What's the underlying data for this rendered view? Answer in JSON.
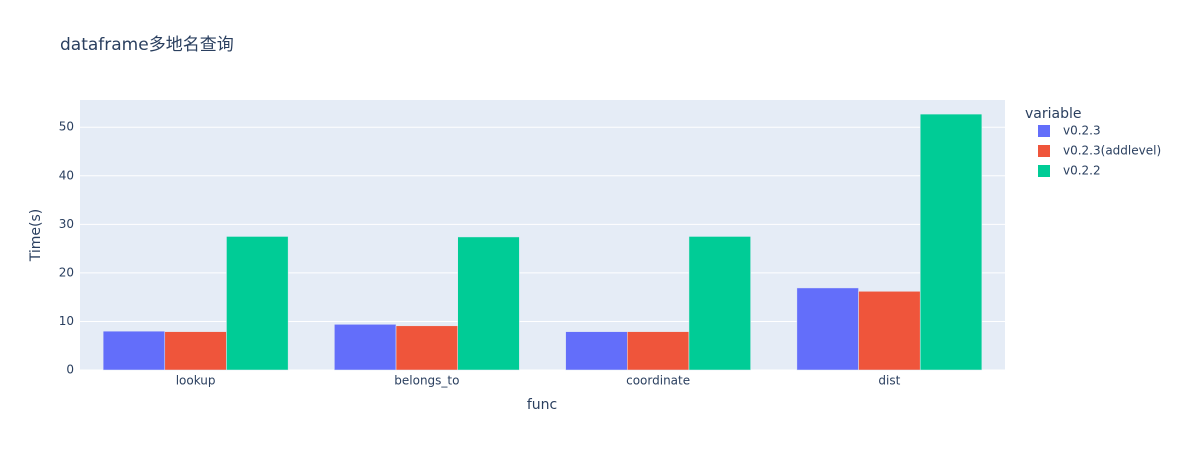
{
  "chart_data": {
    "type": "bar",
    "title": "dataframe多地名查询",
    "x_label": "func",
    "y_label": "Time(s)",
    "legend_title": "variable",
    "categories": [
      "lookup",
      "belongs_to",
      "coordinate",
      "dist"
    ],
    "series": [
      {
        "name": "v0.2.3",
        "color": "#636efa",
        "values": [
          8.0,
          9.4,
          7.9,
          16.9
        ]
      },
      {
        "name": "v0.2.3(addlevel)",
        "color": "#ef553b",
        "values": [
          7.9,
          9.1,
          7.9,
          16.2
        ]
      },
      {
        "name": "v0.2.2",
        "color": "#00cc96",
        "values": [
          27.5,
          27.4,
          27.5,
          52.7
        ]
      }
    ],
    "ylim": [
      0,
      55.6
    ],
    "yticks": [
      0,
      10,
      20,
      30,
      40,
      50
    ],
    "grid": true,
    "legend": "right"
  }
}
